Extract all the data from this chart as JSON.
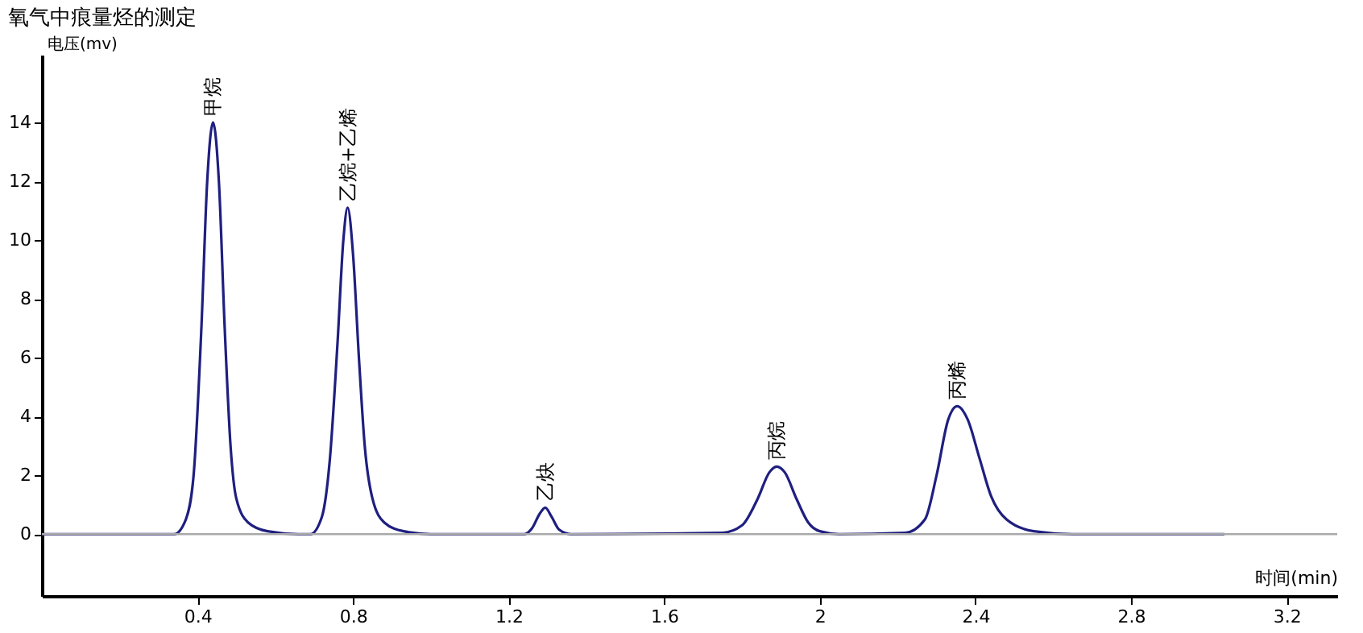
{
  "chart_data": {
    "type": "line",
    "title": "氧气中痕量烃的测定",
    "xlabel": "时间(min)",
    "ylabel": "电压(mv)",
    "xlim": [
      0,
      3.33
    ],
    "ylim": [
      -2.1,
      16.3
    ],
    "xticks": [
      0.4,
      0.8,
      1.2,
      1.6,
      2,
      2.4,
      2.8,
      3.2
    ],
    "yticks": [
      0,
      2,
      4,
      6,
      8,
      10,
      12,
      14
    ],
    "grid": false,
    "marker": "none",
    "line_style": "solid",
    "series": [
      {
        "color": "#1f1f80",
        "x": [
          0,
          0.34,
          0.37,
          0.39,
          0.41,
          0.425,
          0.44,
          0.455,
          0.47,
          0.485,
          0.5,
          0.53,
          0.58,
          0.66,
          0.69,
          0.72,
          0.74,
          0.76,
          0.775,
          0.786,
          0.8,
          0.815,
          0.83,
          0.85,
          0.88,
          0.93,
          1.0,
          1.24,
          1.26,
          1.28,
          1.294,
          1.31,
          1.33,
          1.36,
          1.75,
          1.8,
          1.84,
          1.87,
          1.889,
          1.91,
          1.94,
          1.97,
          2.0,
          2.05,
          2.22,
          2.27,
          2.3,
          2.33,
          2.353,
          2.38,
          2.41,
          2.44,
          2.48,
          2.55,
          2.65,
          3.04
        ],
        "values": [
          0,
          0,
          0.5,
          2,
          7,
          12,
          14,
          12,
          7,
          3,
          1.2,
          0.4,
          0.1,
          0,
          0,
          0.6,
          2.5,
          6.5,
          10,
          11.1,
          9.5,
          6,
          3,
          1.2,
          0.4,
          0.1,
          0,
          0,
          0.2,
          0.7,
          0.9,
          0.6,
          0.15,
          0,
          0.05,
          0.3,
          1.2,
          2.1,
          2.3,
          2.1,
          1.2,
          0.4,
          0.1,
          0,
          0.05,
          0.5,
          2,
          3.9,
          4.35,
          3.9,
          2.6,
          1.3,
          0.5,
          0.1,
          0,
          0
        ]
      }
    ],
    "ref_lines": [
      {
        "axis": "y",
        "value": 0,
        "color": "#aaaaaa"
      }
    ],
    "annotations": [
      {
        "text": "甲烷",
        "x": 0.44,
        "y": 14
      },
      {
        "text": "乙烷+乙烯",
        "x": 0.786,
        "y": 11.1
      },
      {
        "text": "乙炔",
        "x": 1.294,
        "y": 0.9
      },
      {
        "text": "丙烷",
        "x": 1.889,
        "y": 2.3
      },
      {
        "text": "丙烯",
        "x": 2.353,
        "y": 4.35
      }
    ]
  }
}
